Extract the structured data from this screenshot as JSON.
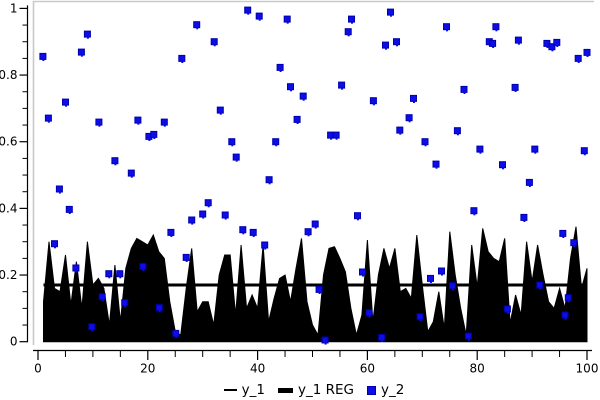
{
  "colors": {
    "background": "#ffffff",
    "axis": "#000000",
    "text": "#000000",
    "frame_gray": "#c9c9c9",
    "series_y1": "#000000",
    "regression": "#000000",
    "scatter_fill": "#0d0de8",
    "scatter_border": "#0000b0"
  },
  "chart_data": {
    "type": "mixed",
    "xlim": [
      0,
      100
    ],
    "ylim": [
      0,
      1
    ],
    "grid": false,
    "x_ticks_major": [
      0,
      20,
      40,
      60,
      80,
      100
    ],
    "x_tick_labels": [
      "0",
      "20",
      "40",
      "60",
      "80",
      "100"
    ],
    "x_tick_minor_step": 5,
    "y_ticks_major": [
      0,
      0.2,
      0.4,
      0.6,
      0.8,
      1
    ],
    "y_tick_labels": [
      "0",
      "0.2",
      "0.4",
      "0.6",
      "0.8",
      "1"
    ],
    "y_tick_minor_step": 0.05,
    "xlabel": "",
    "ylabel": "",
    "series": [
      {
        "name": "y_1",
        "type": "area",
        "x_start": 1,
        "x_step": 1,
        "values": [
          0.12,
          0.3,
          0.16,
          0.15,
          0.26,
          0.11,
          0.24,
          0.1,
          0.3,
          0.17,
          0.19,
          0.16,
          0.05,
          0.23,
          0.06,
          0.22,
          0.28,
          0.31,
          0.3,
          0.29,
          0.32,
          0.27,
          0.25,
          0.12,
          0.03,
          0.02,
          0.16,
          0.28,
          0.09,
          0.12,
          0.12,
          0.05,
          0.2,
          0.26,
          0.26,
          0.08,
          0.29,
          0.1,
          0.14,
          0.1,
          0.29,
          0.06,
          0.13,
          0.19,
          0.2,
          0.12,
          0.22,
          0.31,
          0.12,
          0.05,
          0.02,
          0.2,
          0.28,
          0.285,
          0.25,
          0.21,
          0.1,
          0.02,
          0.08,
          0.305,
          0.06,
          0.2,
          0.28,
          0.22,
          0.28,
          0.15,
          0.16,
          0.13,
          0.32,
          0.17,
          0.03,
          0.06,
          0.15,
          0.04,
          0.33,
          0.2,
          0.1,
          0.02,
          0.29,
          0.165,
          0.34,
          0.27,
          0.25,
          0.24,
          0.31,
          0.055,
          0.14,
          0.08,
          0.3,
          0.18,
          0.29,
          0.2,
          0.12,
          0.1,
          0.16,
          0.1,
          0.25,
          0.345,
          0.16,
          0.22
        ]
      },
      {
        "name": "y_1 REG",
        "type": "line",
        "value": 0.17,
        "x_range": [
          1,
          100
        ]
      },
      {
        "name": "y_2",
        "type": "scatter",
        "points": [
          [
            0.9,
            0.856
          ],
          [
            1.9,
            0.671
          ],
          [
            3.0,
            0.294
          ],
          [
            3.9,
            0.458
          ],
          [
            5.0,
            0.719
          ],
          [
            5.7,
            0.397
          ],
          [
            6.9,
            0.221
          ],
          [
            7.9,
            0.869
          ],
          [
            9.0,
            0.923
          ],
          [
            9.8,
            0.045
          ],
          [
            11.1,
            0.659
          ],
          [
            11.7,
            0.135
          ],
          [
            12.9,
            0.204
          ],
          [
            14.0,
            0.543
          ],
          [
            14.9,
            0.204
          ],
          [
            15.8,
            0.117
          ],
          [
            17.0,
            0.506
          ],
          [
            18.2,
            0.665
          ],
          [
            19.1,
            0.226
          ],
          [
            20.2,
            0.616
          ],
          [
            21.1,
            0.622
          ],
          [
            22.1,
            0.102
          ],
          [
            23.0,
            0.659
          ],
          [
            24.2,
            0.328
          ],
          [
            25.1,
            0.025
          ],
          [
            26.2,
            0.85
          ],
          [
            27.0,
            0.253
          ],
          [
            28.0,
            0.365
          ],
          [
            28.9,
            0.951
          ],
          [
            30.0,
            0.383
          ],
          [
            31.0,
            0.417
          ],
          [
            32.1,
            0.9
          ],
          [
            33.2,
            0.695
          ],
          [
            34.1,
            0.38
          ],
          [
            35.3,
            0.6
          ],
          [
            36.1,
            0.554
          ],
          [
            37.3,
            0.336
          ],
          [
            38.2,
            0.995
          ],
          [
            39.2,
            0.328
          ],
          [
            40.3,
            0.977
          ],
          [
            41.3,
            0.29
          ],
          [
            42.1,
            0.486
          ],
          [
            43.3,
            0.6
          ],
          [
            44.1,
            0.823
          ],
          [
            45.4,
            0.968
          ],
          [
            46.0,
            0.765
          ],
          [
            47.2,
            0.667
          ],
          [
            48.3,
            0.737
          ],
          [
            49.2,
            0.33
          ],
          [
            50.5,
            0.353
          ],
          [
            51.2,
            0.157
          ],
          [
            52.3,
            0.005
          ],
          [
            53.3,
            0.62
          ],
          [
            54.3,
            0.62
          ],
          [
            55.3,
            0.77
          ],
          [
            56.5,
            0.93
          ],
          [
            57.1,
            0.968
          ],
          [
            58.2,
            0.378
          ],
          [
            59.1,
            0.209
          ],
          [
            60.3,
            0.087
          ],
          [
            61.1,
            0.723
          ],
          [
            62.6,
            0.013
          ],
          [
            63.3,
            0.89
          ],
          [
            64.2,
            0.989
          ],
          [
            65.3,
            0.9
          ],
          [
            65.9,
            0.635
          ],
          [
            67.6,
            0.672
          ],
          [
            68.4,
            0.73
          ],
          [
            69.6,
            0.075
          ],
          [
            70.5,
            0.6
          ],
          [
            71.5,
            0.19
          ],
          [
            72.5,
            0.533
          ],
          [
            73.5,
            0.212
          ],
          [
            74.4,
            0.945
          ],
          [
            75.5,
            0.168
          ],
          [
            76.4,
            0.633
          ],
          [
            77.6,
            0.757
          ],
          [
            78.4,
            0.017
          ],
          [
            79.4,
            0.393
          ],
          [
            80.5,
            0.578
          ],
          [
            82.2,
            0.9
          ],
          [
            82.8,
            0.895
          ],
          [
            83.4,
            0.945
          ],
          [
            84.6,
            0.531
          ],
          [
            85.5,
            0.098
          ],
          [
            86.9,
            0.763
          ],
          [
            87.5,
            0.905
          ],
          [
            88.5,
            0.373
          ],
          [
            89.5,
            0.478
          ],
          [
            90.5,
            0.578
          ],
          [
            91.4,
            0.17
          ],
          [
            92.7,
            0.895
          ],
          [
            93.6,
            0.885
          ],
          [
            94.5,
            0.898
          ],
          [
            95.6,
            0.325
          ],
          [
            96.0,
            0.08
          ],
          [
            96.6,
            0.132
          ],
          [
            97.6,
            0.297
          ],
          [
            98.4,
            0.85
          ],
          [
            99.5,
            0.573
          ],
          [
            100.0,
            0.868
          ]
        ]
      }
    ],
    "legend": {
      "position": "bottom",
      "items": [
        {
          "label": "y_1",
          "swatch": "thin-line"
        },
        {
          "label": "y_1 REG",
          "swatch": "thick-line"
        },
        {
          "label": "y_2",
          "swatch": "square"
        }
      ]
    }
  }
}
